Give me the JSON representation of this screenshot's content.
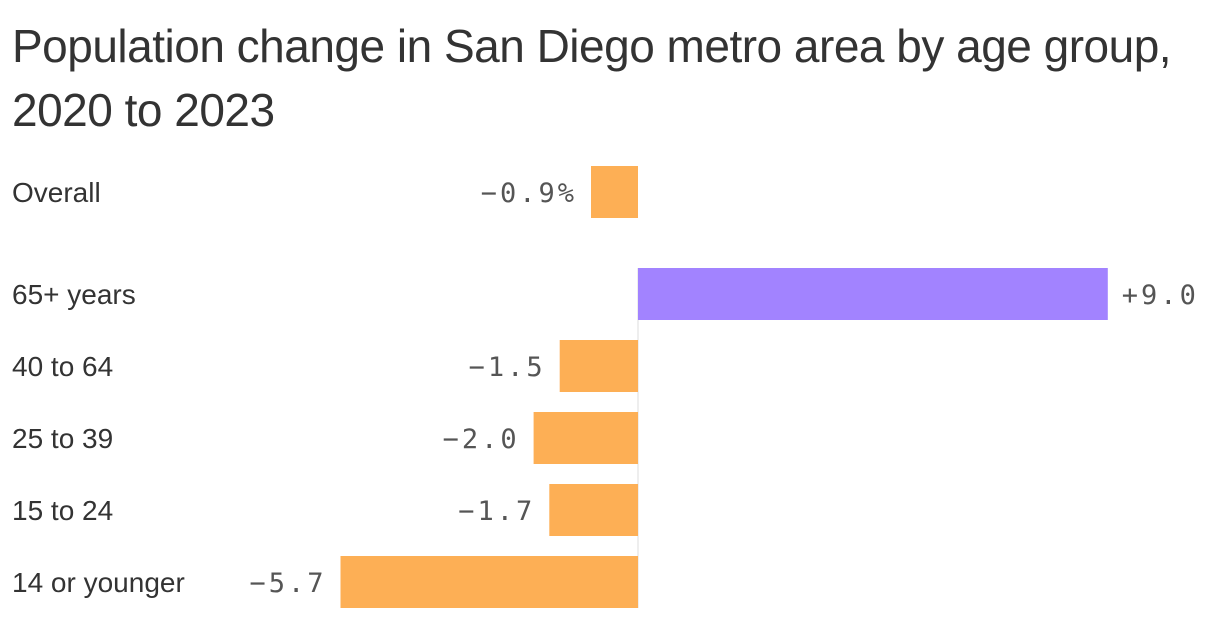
{
  "chart_data": {
    "type": "bar",
    "orientation": "horizontal",
    "title": "Population change in San Diego metro area by age group, 2020 to 2023",
    "xlabel": "",
    "ylabel": "",
    "unit": "%",
    "grid": false,
    "legend": "none",
    "categories": [
      "Overall",
      "65+ years",
      "40 to 64",
      "25 to 39",
      "15 to 24",
      "14 or younger"
    ],
    "values": [
      -0.9,
      9.0,
      -1.5,
      -2.0,
      -1.7,
      -5.7
    ],
    "value_labels": [
      "−0.9%",
      "+9.0",
      "−1.5",
      "−2.0",
      "−1.7",
      "−5.7"
    ],
    "xlim": [
      -5.9,
      9.4
    ],
    "colors": {
      "negative": "#FDAF55",
      "positive": "#A283FF",
      "zero_line": "#dddddd"
    }
  }
}
